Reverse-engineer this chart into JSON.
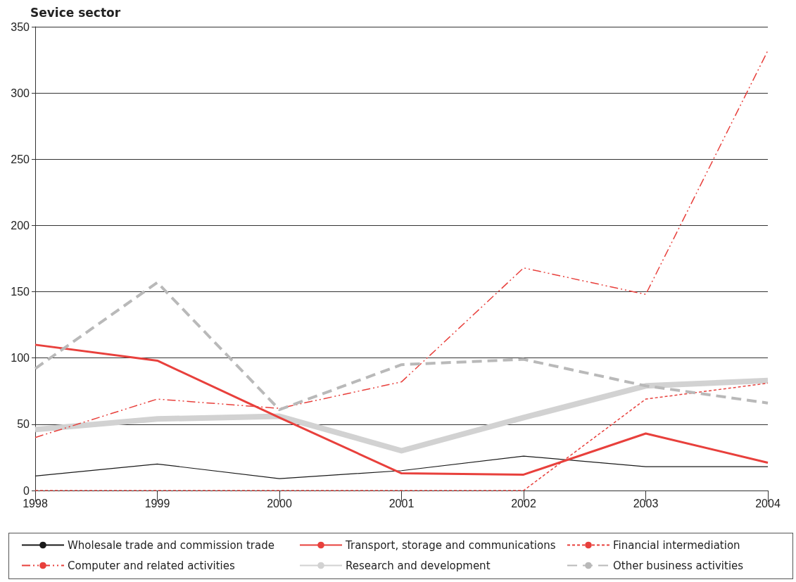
{
  "chart_data": {
    "type": "line",
    "title": "Sevice sector",
    "categories": [
      "1998",
      "1999",
      "2000",
      "2001",
      "2002",
      "2003",
      "2004"
    ],
    "series": [
      {
        "name": "Wholesale trade and commission trade",
        "color": "#1a1a1a",
        "line_style": "solid",
        "values": [
          11,
          20,
          9,
          15,
          26,
          18,
          18
        ]
      },
      {
        "name": "Transport, storage and communications",
        "color": "#e8403c",
        "line_style": "solid",
        "values": [
          110,
          98,
          55,
          13,
          12,
          43,
          21
        ]
      },
      {
        "name": "Financial intermediation",
        "color": "#e8403c",
        "line_style": "dotted",
        "values": [
          0,
          0,
          0,
          0,
          0,
          69,
          81
        ]
      },
      {
        "name": "Computer and related activities",
        "color": "#e8403c",
        "line_style": "dashdot",
        "values": [
          40,
          69,
          62,
          82,
          168,
          148,
          332
        ]
      },
      {
        "name": "Research and development",
        "color": "#d2d2d2",
        "line_style": "solid",
        "values": [
          46,
          54,
          56,
          30,
          55,
          79,
          83
        ]
      },
      {
        "name": "Other business activities",
        "color": "#b9b9b9",
        "line_style": "dashed",
        "values": [
          92,
          157,
          61,
          95,
          99,
          79,
          66
        ]
      }
    ],
    "ylim": [
      0,
      350
    ],
    "yticks": [
      0,
      50,
      100,
      150,
      200,
      250,
      300,
      350
    ],
    "grid": "y",
    "legend": "bottom",
    "marker": "none"
  }
}
